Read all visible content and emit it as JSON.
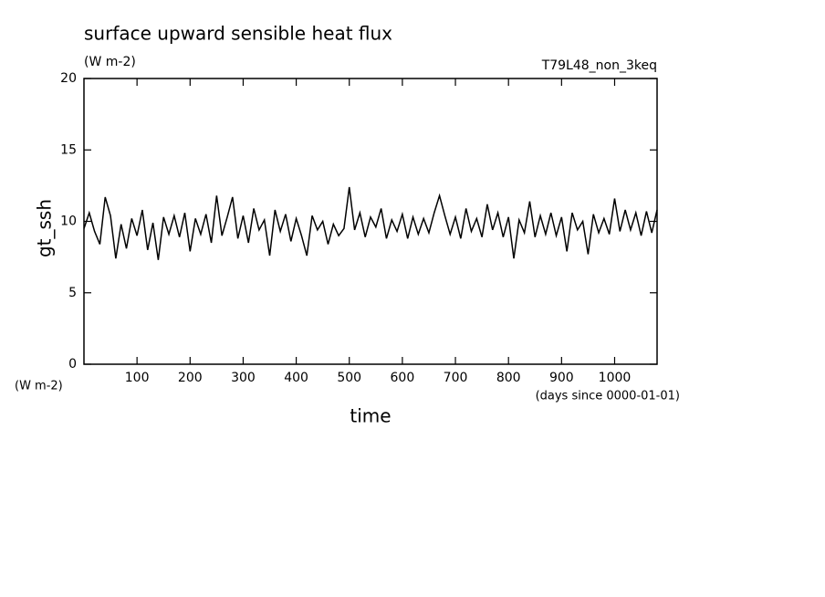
{
  "chart_data": {
    "type": "line",
    "title": "surface upward sensible heat flux",
    "subtitle": "(W m-2)",
    "run_label": "T79L48_non_3keq",
    "y_label": "gt_ssh",
    "y_unit_label": "(W m-2)",
    "x_label": "time",
    "x_unit_label": "(days since 0000-01-01)",
    "xlim": [
      0,
      1080
    ],
    "ylim": [
      0,
      20
    ],
    "xticks": [
      100,
      200,
      300,
      400,
      500,
      600,
      700,
      800,
      900,
      1000
    ],
    "yticks": [
      0,
      5,
      10,
      15,
      20
    ],
    "color": "#000000",
    "x": [
      0,
      10,
      20,
      30,
      40,
      50,
      60,
      70,
      80,
      90,
      100,
      110,
      120,
      130,
      140,
      150,
      160,
      170,
      180,
      190,
      200,
      210,
      220,
      230,
      240,
      250,
      260,
      270,
      280,
      290,
      300,
      310,
      320,
      330,
      340,
      350,
      360,
      370,
      380,
      390,
      400,
      410,
      420,
      430,
      440,
      450,
      460,
      470,
      480,
      490,
      500,
      510,
      520,
      530,
      540,
      550,
      560,
      570,
      580,
      590,
      600,
      610,
      620,
      630,
      640,
      650,
      660,
      670,
      680,
      690,
      700,
      710,
      720,
      730,
      740,
      750,
      760,
      770,
      780,
      790,
      800,
      810,
      820,
      830,
      840,
      850,
      860,
      870,
      880,
      890,
      900,
      910,
      920,
      930,
      940,
      950,
      960,
      970,
      980,
      990,
      1000,
      1010,
      1020,
      1030,
      1040,
      1050,
      1060,
      1070,
      1080
    ],
    "values": [
      9.5,
      10.6,
      9.3,
      8.4,
      11.7,
      10.4,
      7.4,
      9.8,
      8.1,
      10.2,
      9.0,
      10.8,
      8.0,
      9.9,
      7.3,
      10.3,
      9.1,
      10.4,
      8.9,
      10.6,
      7.9,
      10.2,
      9.1,
      10.5,
      8.5,
      11.8,
      9.0,
      10.3,
      11.7,
      8.8,
      10.4,
      8.5,
      10.9,
      9.4,
      10.1,
      7.6,
      10.8,
      9.3,
      10.5,
      8.6,
      10.2,
      9.0,
      7.6,
      10.4,
      9.4,
      10.0,
      8.4,
      9.8,
      9.0,
      9.5,
      12.4,
      9.4,
      10.6,
      8.9,
      10.3,
      9.6,
      10.9,
      8.8,
      10.1,
      9.3,
      10.5,
      8.8,
      10.3,
      9.1,
      10.2,
      9.2,
      10.6,
      11.8,
      10.4,
      9.1,
      10.3,
      8.8,
      10.9,
      9.3,
      10.2,
      8.9,
      11.2,
      9.4,
      10.6,
      8.9,
      10.3,
      7.4,
      10.1,
      9.2,
      11.4,
      8.9,
      10.4,
      9.1,
      10.6,
      9.0,
      10.3,
      7.9,
      10.6,
      9.4,
      10.0,
      7.7,
      10.5,
      9.2,
      10.2,
      9.1,
      11.6,
      9.3,
      10.8,
      9.4,
      10.6,
      9.0,
      10.7,
      9.2,
      10.8
    ]
  }
}
